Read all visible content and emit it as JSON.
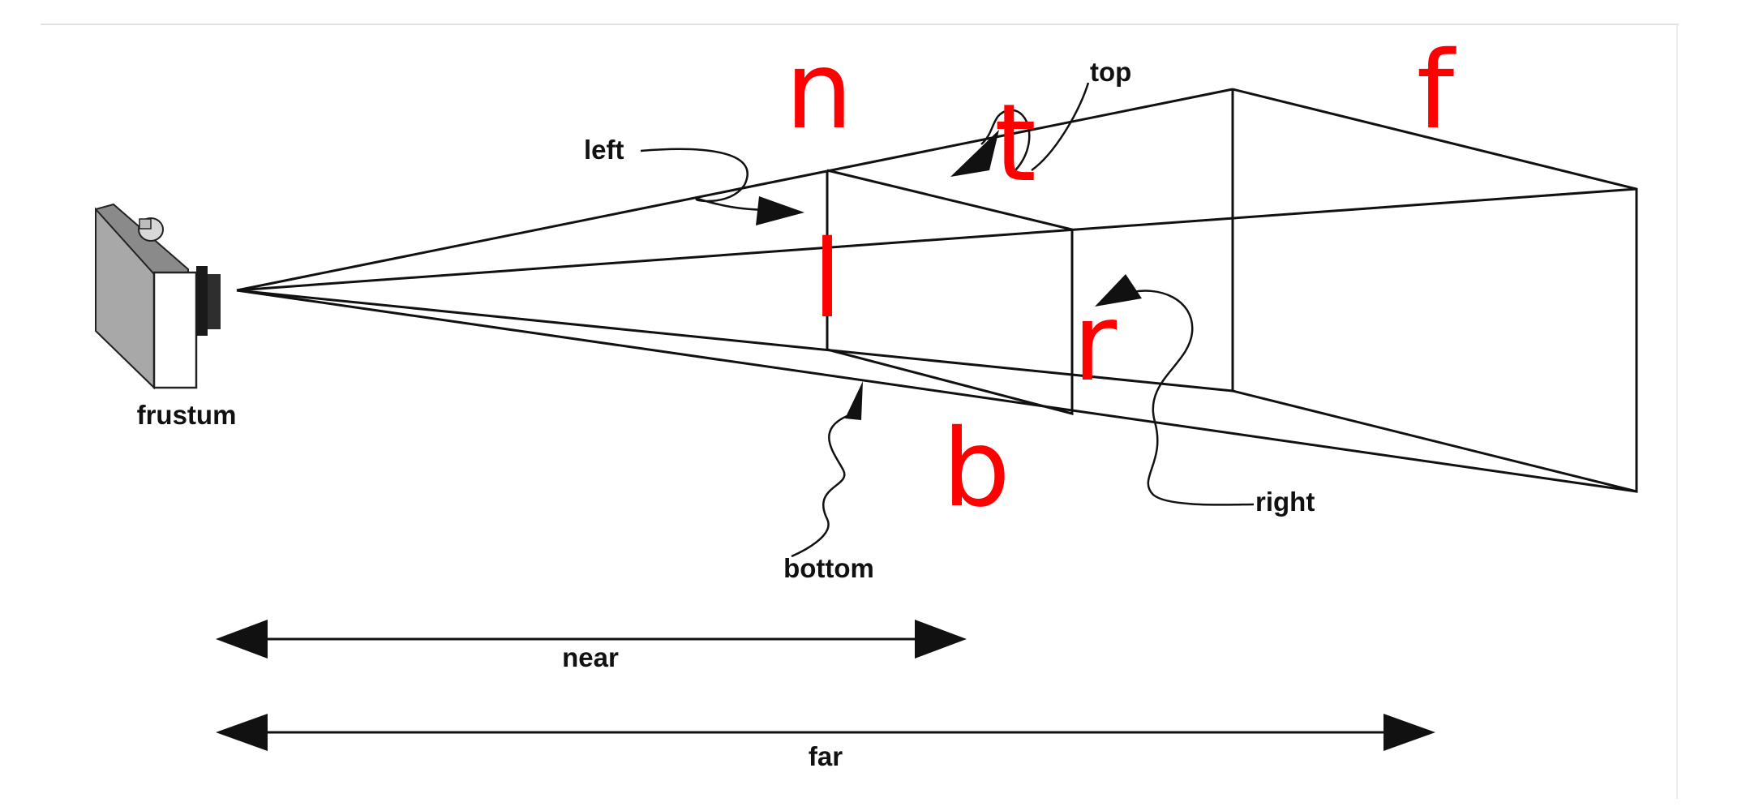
{
  "colors": {
    "ink": "#111111",
    "accent_red": "#ff0000",
    "background": "#ffffff"
  },
  "labels": {
    "frustum": "frustum",
    "left": "left",
    "top": "top",
    "right": "right",
    "bottom": "bottom",
    "near": "near",
    "far": "far"
  },
  "red_letters": {
    "n": "n",
    "f": "f",
    "t": "t",
    "l": "l",
    "r": "r",
    "b": "b"
  },
  "icons": {
    "camera": "camera-icon"
  }
}
